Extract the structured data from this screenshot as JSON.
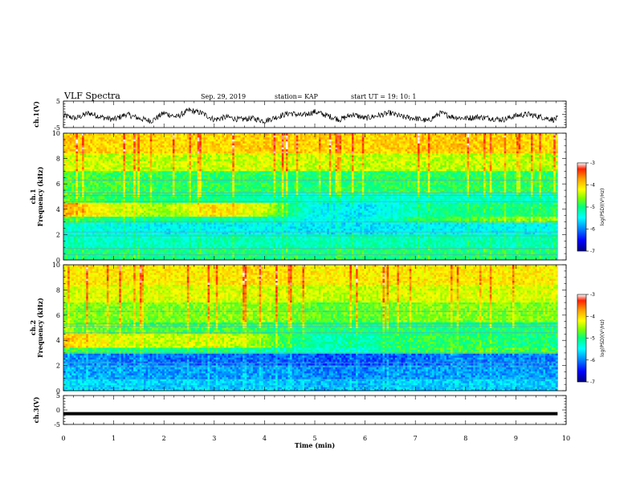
{
  "header": {
    "title": "VLF Spectra",
    "date": "Sep. 29, 2019",
    "station": "station= KAP",
    "start": "start  UT  =    19: 10: 1"
  },
  "chart_data": [
    {
      "type": "line",
      "panel": "ch1-waveform",
      "ylabel": "ch.1(V)",
      "ylim": [
        -5,
        5
      ],
      "yticks": [
        "5",
        "-5"
      ],
      "xlim": [
        0,
        10
      ],
      "series": [
        {
          "x": [
            0,
            0.25,
            0.5,
            0.75,
            1.0,
            1.25,
            1.5,
            1.75,
            2.0,
            2.25,
            2.5,
            2.75,
            3.0,
            3.25,
            3.5,
            3.75,
            4.0,
            4.25,
            4.5,
            4.75,
            5.0,
            5.25,
            5.5,
            5.75,
            6.0,
            6.25,
            6.5,
            6.75,
            7.0,
            7.25,
            7.5,
            7.75,
            8.0,
            8.25,
            8.5,
            8.75,
            9.0,
            9.25,
            9.5,
            9.75,
            9.83
          ],
          "values": [
            -0.5,
            -1.5,
            0.5,
            -1.0,
            -2.0,
            0.0,
            -1.5,
            -2.5,
            0.5,
            -1.0,
            1.5,
            0.5,
            -2.0,
            -1.0,
            -2.0,
            -1.5,
            -2.5,
            -1.0,
            0.5,
            -0.5,
            1.0,
            -0.5,
            -2.0,
            0.0,
            -1.5,
            -0.5,
            0.5,
            -1.0,
            -1.5,
            -2.5,
            0.5,
            -1.0,
            -1.5,
            -1.0,
            -1.5,
            -2.0,
            -0.5,
            0.0,
            -1.0,
            -2.0,
            -1.5
          ]
        }
      ]
    },
    {
      "type": "heatmap",
      "panel": "ch1-spectrogram",
      "ylabel": "ch.1\nFrequency (kHz)",
      "ylim": [
        0,
        10
      ],
      "yticks": [
        "0",
        "2",
        "4",
        "6",
        "8",
        "10"
      ],
      "xlim": [
        0,
        10
      ],
      "colorbar": {
        "label": "log(PSD)(V²/Hz)",
        "range": [
          -7,
          -3
        ],
        "ticks": [
          "-3",
          "-4",
          "-5",
          "-6",
          "-7"
        ]
      },
      "time_min": [
        0,
        1,
        2,
        3,
        4,
        5,
        6,
        7,
        8,
        9,
        9.83
      ],
      "bands_khz": [
        {
          "f": [
            0,
            1
          ],
          "log_psd": [
            -5.0,
            -5.0,
            -5.1,
            -5.0,
            -5.0,
            -5.0,
            -5.0,
            -5.0,
            -5.0,
            -5.0,
            -5.0
          ]
        },
        {
          "f": [
            1,
            2
          ],
          "log_psd": [
            -5.2,
            -5.3,
            -5.3,
            -5.2,
            -5.2,
            -5.3,
            -5.2,
            -5.2,
            -5.2,
            -5.2,
            -5.2
          ]
        },
        {
          "f": [
            2,
            3
          ],
          "log_psd": [
            -5.3,
            -5.4,
            -5.5,
            -5.5,
            -5.5,
            -5.6,
            -5.6,
            -5.5,
            -5.5,
            -5.5,
            -5.5
          ]
        },
        {
          "f": [
            3,
            3.5
          ],
          "log_psd": [
            -4.8,
            -5.0,
            -5.1,
            -5.1,
            -5.2,
            -5.5,
            -5.5,
            -5.0,
            -4.8,
            -4.6,
            -4.6
          ]
        },
        {
          "f": [
            3.5,
            4.5
          ],
          "log_psd": [
            -3.8,
            -4.3,
            -4.6,
            -4.0,
            -4.4,
            -5.5,
            -5.6,
            -5.2,
            -5.0,
            -5.0,
            -5.0
          ]
        },
        {
          "f": [
            4.5,
            5.3
          ],
          "log_psd": [
            -4.7,
            -4.9,
            -5.0,
            -5.0,
            -5.2,
            -5.3,
            -5.3,
            -5.3,
            -5.3,
            -5.3,
            -5.3
          ]
        },
        {
          "f": [
            5.3,
            7
          ],
          "log_psd": [
            -4.8,
            -4.8,
            -4.9,
            -4.9,
            -4.9,
            -5.0,
            -4.9,
            -4.9,
            -4.9,
            -4.9,
            -4.9
          ]
        },
        {
          "f": [
            7,
            8.5
          ],
          "log_psd": [
            -4.3,
            -4.4,
            -4.4,
            -4.4,
            -4.3,
            -4.4,
            -4.4,
            -4.4,
            -4.4,
            -4.4,
            -4.4
          ]
        },
        {
          "f": [
            8.5,
            10
          ],
          "log_psd": [
            -3.9,
            -4.0,
            -4.0,
            -4.0,
            -3.9,
            -4.0,
            -4.0,
            -3.9,
            -3.9,
            -4.0,
            -4.0
          ]
        }
      ]
    },
    {
      "type": "heatmap",
      "panel": "ch2-spectrogram",
      "ylabel": "ch.2\nFrequency (kHz)",
      "ylim": [
        0,
        10
      ],
      "yticks": [
        "0",
        "2",
        "4",
        "6",
        "8",
        "10"
      ],
      "xlim": [
        0,
        10
      ],
      "colorbar": {
        "label": "log(PSD)(V²/Hz)",
        "range": [
          -7,
          -3
        ],
        "ticks": [
          "-3",
          "-4",
          "-5",
          "-6",
          "-7"
        ]
      },
      "time_min": [
        0,
        1,
        2,
        3,
        4,
        5,
        6,
        7,
        8,
        9,
        9.83
      ],
      "bands_khz": [
        {
          "f": [
            0,
            1
          ],
          "log_psd": [
            -5.6,
            -5.7,
            -5.7,
            -5.7,
            -5.7,
            -5.8,
            -5.8,
            -5.7,
            -5.7,
            -5.7,
            -5.7
          ]
        },
        {
          "f": [
            1,
            2
          ],
          "log_psd": [
            -5.8,
            -5.9,
            -5.9,
            -5.9,
            -5.9,
            -6.0,
            -6.0,
            -5.9,
            -5.9,
            -5.9,
            -5.9
          ]
        },
        {
          "f": [
            2,
            3
          ],
          "log_psd": [
            -5.9,
            -6.0,
            -6.1,
            -6.1,
            -6.1,
            -6.2,
            -6.2,
            -6.1,
            -6.0,
            -6.0,
            -6.0
          ]
        },
        {
          "f": [
            3,
            3.5
          ],
          "log_psd": [
            -4.8,
            -5.0,
            -5.0,
            -5.0,
            -5.2,
            -5.3,
            -5.3,
            -4.9,
            -4.8,
            -4.8,
            -4.8
          ]
        },
        {
          "f": [
            3.5,
            4.5
          ],
          "log_psd": [
            -3.9,
            -4.3,
            -4.4,
            -4.3,
            -4.6,
            -5.2,
            -5.2,
            -4.9,
            -4.9,
            -5.0,
            -5.0
          ]
        },
        {
          "f": [
            4.5,
            5.5
          ],
          "log_psd": [
            -4.6,
            -4.7,
            -4.8,
            -4.8,
            -4.9,
            -5.0,
            -5.0,
            -5.0,
            -5.0,
            -5.0,
            -5.0
          ]
        },
        {
          "f": [
            5.5,
            7
          ],
          "log_psd": [
            -4.6,
            -4.6,
            -4.6,
            -4.6,
            -4.5,
            -4.7,
            -4.7,
            -4.6,
            -4.6,
            -4.6,
            -4.6
          ]
        },
        {
          "f": [
            7,
            8.5
          ],
          "log_psd": [
            -4.3,
            -4.3,
            -4.3,
            -4.3,
            -4.3,
            -4.4,
            -4.4,
            -4.3,
            -4.3,
            -4.3,
            -4.3
          ]
        },
        {
          "f": [
            8.5,
            10
          ],
          "log_psd": [
            -4.1,
            -4.1,
            -4.1,
            -4.1,
            -4.0,
            -4.1,
            -4.1,
            -4.1,
            -4.1,
            -4.1,
            -4.1
          ]
        }
      ]
    },
    {
      "type": "line",
      "panel": "ch3-waveform",
      "ylabel": "ch.3(V)",
      "ylim": [
        -5,
        5
      ],
      "yticks": [
        "5",
        "0",
        "-5"
      ],
      "xlim": [
        0,
        10
      ],
      "series": [
        {
          "x": [
            0,
            9.83
          ],
          "values": [
            -1.3,
            -1.3
          ]
        }
      ]
    }
  ],
  "x_axis": {
    "label": "Time  (min)",
    "ticks": [
      "0",
      "1",
      "2",
      "3",
      "4",
      "5",
      "6",
      "7",
      "8",
      "9",
      "10"
    ]
  },
  "colors": {
    "ink": "#000000",
    "colormap": [
      "#000080",
      "#0000ff",
      "#00a0ff",
      "#00ffff",
      "#00ff80",
      "#80ff00",
      "#ffff00",
      "#ffa000",
      "#ff2000",
      "#ffffff"
    ]
  }
}
